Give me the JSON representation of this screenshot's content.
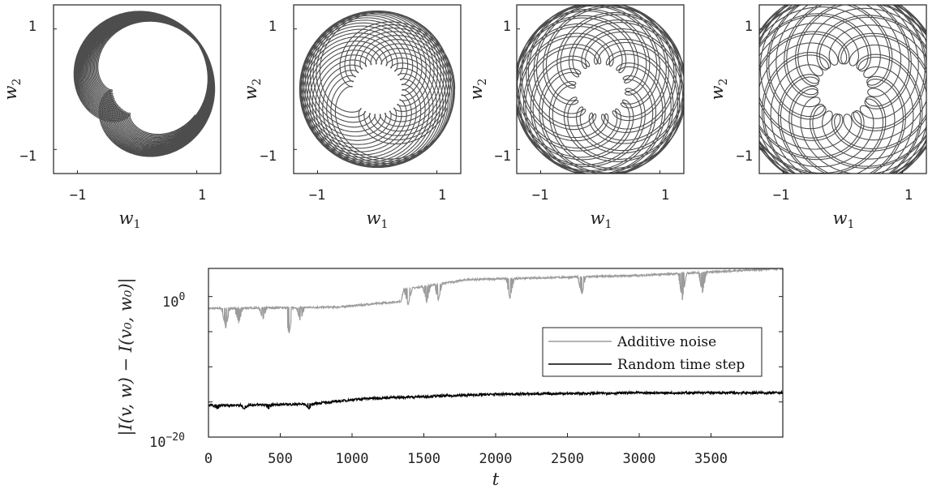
{
  "chart_data": [
    {
      "type": "line",
      "panel": 1,
      "xlabel": "w",
      "xlabel_sub": "1",
      "ylabel": "w",
      "ylabel_sub": "2",
      "xlim": [
        -1.4,
        1.4
      ],
      "ylim": [
        -1.4,
        1.4
      ],
      "xticks": [
        -1,
        1
      ],
      "yticks": [
        -1,
        1
      ],
      "xtick_labels": [
        "−1",
        "1"
      ],
      "ytick_labels": [
        "−1",
        "1"
      ],
      "series": [
        {
          "curve": "rosette",
          "outer_radius": 1.3,
          "inner_radius": 0.42,
          "color": "#4d4d4d"
        }
      ]
    },
    {
      "type": "line",
      "panel": 2,
      "xlabel": "w",
      "xlabel_sub": "1",
      "ylabel": "w",
      "ylabel_sub": "2",
      "xlim": [
        -1.4,
        1.4
      ],
      "ylim": [
        -1.4,
        1.4
      ],
      "xticks": [
        -1,
        1
      ],
      "yticks": [
        -1,
        1
      ],
      "xtick_labels": [
        "−1",
        "1"
      ],
      "ytick_labels": [
        "−1",
        "1"
      ],
      "series": [
        {
          "curve": "rosette",
          "outer_radius": 1.3,
          "inner_radius": 0.42,
          "color": "#4d4d4d"
        }
      ]
    },
    {
      "type": "line",
      "panel": 3,
      "xlabel": "w",
      "xlabel_sub": "1",
      "ylabel": "w",
      "ylabel_sub": "2",
      "xlim": [
        -1.4,
        1.4
      ],
      "ylim": [
        -1.4,
        1.4
      ],
      "xticks": [
        -1,
        1
      ],
      "yticks": [
        -1,
        1
      ],
      "xtick_labels": [
        "−1",
        "1"
      ],
      "ytick_labels": [
        "−1",
        "1"
      ],
      "series": [
        {
          "curve": "rosette",
          "outer_radius": 1.45,
          "inner_radius": 0.42,
          "color": "#4d4d4d"
        }
      ]
    },
    {
      "type": "line",
      "panel": 4,
      "xlabel": "w",
      "xlabel_sub": "1",
      "ylabel": "w",
      "ylabel_sub": "2",
      "xlim": [
        -1.4,
        1.4
      ],
      "ylim": [
        -1.4,
        1.4
      ],
      "xticks": [
        -1,
        1
      ],
      "yticks": [
        -1,
        1
      ],
      "xtick_labels": [
        "−1",
        "1"
      ],
      "ytick_labels": [
        "−1",
        "1"
      ],
      "series": [
        {
          "curve": "rosette",
          "outer_radius": 1.7,
          "inner_radius": 0.42,
          "color": "#4d4d4d"
        }
      ]
    },
    {
      "type": "line",
      "panel": 5,
      "xlabel": "t",
      "ylabel": "|I(v, w) − I(v₀, w₀)|",
      "yscale": "log",
      "xlim": [
        0,
        4000
      ],
      "ylim": [
        -20,
        4
      ],
      "xticks": [
        0,
        500,
        1000,
        1500,
        2000,
        2500,
        3000,
        3500
      ],
      "ytick_labels": [
        {
          "value": 0,
          "base": "10",
          "exp": "0"
        },
        {
          "value": -20,
          "base": "10",
          "exp": "−20"
        }
      ],
      "legend": {
        "position": "center-right",
        "entries": [
          "Additive noise",
          "Random time step"
        ]
      },
      "series": [
        {
          "name": "Additive noise",
          "color": "#9b9b9b",
          "baseline_log10": [
            [
              0,
              -1.7
            ],
            [
              900,
              -1.5
            ],
            [
              1340,
              -0.7
            ],
            [
              1360,
              1.0
            ],
            [
              1800,
              2.4
            ],
            [
              3000,
              3.0
            ],
            [
              4000,
              4.0
            ]
          ],
          "dips": [
            [
              120,
              -4.5
            ],
            [
              210,
              -3.8
            ],
            [
              380,
              -3.2
            ],
            [
              560,
              -5.5
            ],
            [
              640,
              -3.5
            ],
            [
              1390,
              -1.2
            ],
            [
              1520,
              -0.8
            ],
            [
              1600,
              -0.5
            ],
            [
              2100,
              -0.3
            ],
            [
              2600,
              0.2
            ],
            [
              3300,
              -0.5
            ],
            [
              3440,
              0.5
            ]
          ]
        },
        {
          "name": "Random time step",
          "color": "#000000",
          "baseline_log10": [
            [
              0,
              -15.5
            ],
            [
              700,
              -15.3
            ],
            [
              1100,
              -14.5
            ],
            [
              2000,
              -13.9
            ],
            [
              3000,
              -13.7
            ],
            [
              4000,
              -13.7
            ]
          ],
          "dips": [
            [
              60,
              -16.0
            ],
            [
              250,
              -16.0
            ],
            [
              420,
              -16.0
            ],
            [
              700,
              -16.0
            ]
          ]
        }
      ]
    }
  ]
}
